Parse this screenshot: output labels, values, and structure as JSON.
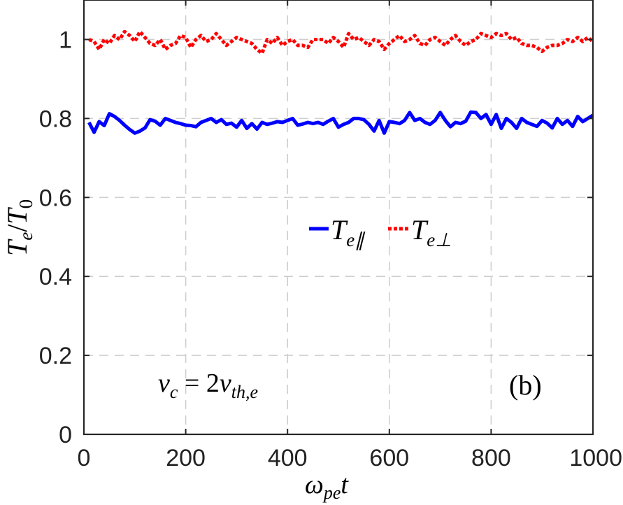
{
  "chart_data": {
    "type": "line",
    "xlabel": "ωpet",
    "xlabel_main": "ω",
    "xlabel_sub": "pe",
    "xlabel_tail": "t",
    "ylabel": "Te/T0",
    "ylabel_T1": "T",
    "ylabel_sub1": "e",
    "ylabel_slash": "/",
    "ylabel_T2": "T",
    "ylabel_sub2": "0",
    "xlim": [
      0,
      1000
    ],
    "ylim": [
      0,
      1.1
    ],
    "xticks": [
      0,
      200,
      400,
      600,
      800,
      1000
    ],
    "xtick_labels": [
      "0",
      "200",
      "400",
      "600",
      "800",
      "1000"
    ],
    "yticks": [
      0,
      0.2,
      0.4,
      0.6,
      0.8,
      1.0
    ],
    "ytick_labels": [
      "0",
      "0.2",
      "0.4",
      "0.6",
      "0.8",
      "1"
    ],
    "grid": true,
    "legend_position": "center-right",
    "annotation": {
      "lhs_main": "v",
      "lhs_sub": "c",
      "equals": " = 2",
      "rhs_main": "v",
      "rhs_sub": "th,e",
      "text": "vc = 2vth,e"
    },
    "panel_label": "(b)",
    "series": [
      {
        "name": "Te∥",
        "label_main": "T",
        "label_sub": "e∥",
        "color": "#0000ff",
        "style": "solid",
        "x": [
          10,
          20,
          30,
          40,
          50,
          60,
          70,
          80,
          90,
          100,
          110,
          120,
          130,
          140,
          150,
          160,
          170,
          180,
          190,
          200,
          210,
          220,
          230,
          240,
          250,
          260,
          270,
          280,
          290,
          300,
          310,
          320,
          330,
          340,
          350,
          360,
          370,
          380,
          390,
          400,
          410,
          420,
          430,
          440,
          450,
          460,
          470,
          480,
          490,
          500,
          510,
          520,
          530,
          540,
          550,
          560,
          570,
          580,
          590,
          600,
          610,
          620,
          630,
          640,
          650,
          660,
          670,
          680,
          690,
          700,
          710,
          720,
          730,
          740,
          750,
          760,
          770,
          780,
          790,
          800,
          810,
          820,
          830,
          840,
          850,
          860,
          870,
          880,
          890,
          900,
          910,
          920,
          930,
          940,
          950,
          960,
          970,
          980,
          990,
          1000
        ],
        "values": [
          0.79,
          0.765,
          0.792,
          0.782,
          0.812,
          0.805,
          0.795,
          0.783,
          0.772,
          0.763,
          0.768,
          0.776,
          0.797,
          0.793,
          0.783,
          0.8,
          0.795,
          0.79,
          0.787,
          0.783,
          0.782,
          0.779,
          0.79,
          0.795,
          0.8,
          0.79,
          0.797,
          0.785,
          0.788,
          0.778,
          0.795,
          0.775,
          0.787,
          0.773,
          0.79,
          0.785,
          0.788,
          0.792,
          0.79,
          0.795,
          0.8,
          0.783,
          0.786,
          0.79,
          0.787,
          0.79,
          0.785,
          0.793,
          0.8,
          0.778,
          0.785,
          0.79,
          0.8,
          0.8,
          0.797,
          0.785,
          0.768,
          0.795,
          0.763,
          0.792,
          0.79,
          0.787,
          0.795,
          0.815,
          0.795,
          0.8,
          0.79,
          0.785,
          0.795,
          0.815,
          0.795,
          0.779,
          0.79,
          0.787,
          0.793,
          0.816,
          0.815,
          0.8,
          0.81,
          0.785,
          0.81,
          0.775,
          0.8,
          0.79,
          0.775,
          0.8,
          0.79,
          0.785,
          0.78,
          0.795,
          0.788,
          0.776,
          0.8,
          0.785,
          0.795,
          0.78,
          0.805,
          0.792,
          0.8,
          0.808
        ]
      },
      {
        "name": "Te⊥",
        "label_main": "T",
        "label_sub": "e⊥",
        "color": "#ff0000",
        "style": "dotted",
        "x": [
          10,
          20,
          30,
          40,
          50,
          60,
          70,
          80,
          90,
          100,
          110,
          120,
          130,
          140,
          150,
          160,
          170,
          180,
          190,
          200,
          210,
          220,
          230,
          240,
          250,
          260,
          270,
          280,
          290,
          300,
          310,
          320,
          330,
          340,
          350,
          360,
          370,
          380,
          390,
          400,
          410,
          420,
          430,
          440,
          450,
          460,
          470,
          480,
          490,
          500,
          510,
          520,
          530,
          540,
          550,
          560,
          570,
          580,
          590,
          600,
          610,
          620,
          630,
          640,
          650,
          660,
          670,
          680,
          690,
          700,
          710,
          720,
          730,
          740,
          750,
          760,
          770,
          780,
          790,
          800,
          810,
          820,
          830,
          840,
          850,
          860,
          870,
          880,
          890,
          900,
          910,
          920,
          930,
          940,
          950,
          960,
          970,
          980,
          990,
          1000
        ],
        "values": [
          1.0,
          0.995,
          0.975,
          1.0,
          0.99,
          1.01,
          1.0,
          1.02,
          1.01,
          0.995,
          1.02,
          1.005,
          0.99,
          0.985,
          1.0,
          0.975,
          0.985,
          0.99,
          1.01,
          1.005,
          0.98,
          1.0,
          1.01,
          0.995,
          1.0,
          1.015,
          1.0,
          0.985,
          0.995,
          1.005,
          1.0,
          0.995,
          0.99,
          0.975,
          0.965,
          1.0,
          0.99,
          1.005,
          0.985,
          0.995,
          1.0,
          0.985,
          0.985,
          0.98,
          1.0,
          1.0,
          1.0,
          0.99,
          1.005,
          0.995,
          0.98,
          1.015,
          1.0,
          1.005,
          0.995,
          0.985,
          1.0,
          0.995,
          0.975,
          0.99,
          1.0,
          1.01,
          0.995,
          1.0,
          1.01,
          0.99,
          0.985,
          1.0,
          1.005,
          0.995,
          0.985,
          1.0,
          1.01,
          0.995,
          0.985,
          0.995,
          1.0,
          1.015,
          1.01,
          1.005,
          1.015,
          1.01,
          1.015,
          1.0,
          1.005,
          0.99,
          0.985,
          0.985,
          0.98,
          0.97,
          0.98,
          0.985,
          0.985,
          0.99,
          1.0,
          0.995,
          1.005,
          0.995,
          1.005,
          0.995
        ]
      }
    ]
  }
}
